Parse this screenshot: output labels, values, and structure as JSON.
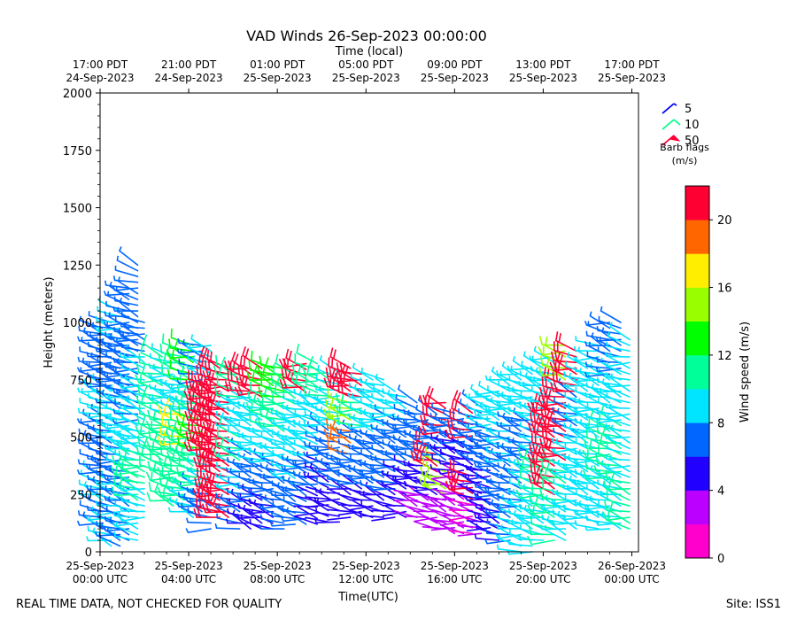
{
  "chart_data": {
    "type": "wind-barb",
    "title": "VAD Winds 26-Sep-2023 00:00:00",
    "top_axis_label": "Time (local)",
    "top_ticks": [
      {
        "t": 0,
        "line1": "17:00 PDT",
        "line2": "24-Sep-2023"
      },
      {
        "t": 4,
        "line1": "21:00 PDT",
        "line2": "24-Sep-2023"
      },
      {
        "t": 8,
        "line1": "01:00 PDT",
        "line2": "25-Sep-2023"
      },
      {
        "t": 12,
        "line1": "05:00 PDT",
        "line2": "25-Sep-2023"
      },
      {
        "t": 16,
        "line1": "09:00 PDT",
        "line2": "25-Sep-2023"
      },
      {
        "t": 20,
        "line1": "13:00 PDT",
        "line2": "25-Sep-2023"
      },
      {
        "t": 24,
        "line1": "17:00 PDT",
        "line2": "25-Sep-2023"
      }
    ],
    "bottom_ticks": [
      {
        "t": 0,
        "line1": "25-Sep-2023",
        "line2": "00:00 UTC"
      },
      {
        "t": 4,
        "line1": "25-Sep-2023",
        "line2": "04:00 UTC"
      },
      {
        "t": 8,
        "line1": "25-Sep-2023",
        "line2": "08:00 UTC"
      },
      {
        "t": 12,
        "line1": "25-Sep-2023",
        "line2": "12:00 UTC"
      },
      {
        "t": 16,
        "line1": "25-Sep-2023",
        "line2": "16:00 UTC"
      },
      {
        "t": 20,
        "line1": "25-Sep-2023",
        "line2": "20:00 UTC"
      },
      {
        "t": 24,
        "line1": "26-Sep-2023",
        "line2": "00:00 UTC"
      }
    ],
    "xlabel": "Time(UTC)",
    "ylabel": "Height (meters)",
    "xlim": [
      0,
      24.3
    ],
    "ylim": [
      0,
      2000
    ],
    "yticks": [
      0,
      250,
      500,
      750,
      1000,
      1250,
      1500,
      1750,
      2000
    ],
    "legend": {
      "items": [
        {
          "label": "5",
          "color": "#0000ff"
        },
        {
          "label": "10",
          "color": "#00ff88"
        },
        {
          "label": "50",
          "color": "#ff0033"
        }
      ],
      "caption_line1": "Barb flags",
      "caption_line2": "(m/s)",
      "placement": "right of plot"
    },
    "colorbar": {
      "label": "Wind speed (m/s)",
      "min": 0,
      "max": 22,
      "step": 2,
      "ticks": [
        0,
        4,
        8,
        12,
        16,
        20
      ],
      "colors": [
        "#ff00cc",
        "#bb00ff",
        "#2200ff",
        "#0066ff",
        "#00e5ff",
        "#00ff99",
        "#00ff00",
        "#99ff00",
        "#ffee00",
        "#ff6600",
        "#ff0033"
      ]
    },
    "columns": [
      {
        "t": 0.1,
        "h": [
          100,
          975
        ],
        "ws": [
          7,
          8,
          7,
          6,
          8,
          7,
          6
        ]
      },
      {
        "t": 0.5,
        "h": [
          25,
          1000
        ],
        "ws": [
          8,
          7,
          6,
          7,
          8,
          6,
          7
        ]
      },
      {
        "t": 0.9,
        "h": [
          25,
          1050
        ],
        "ws": [
          7,
          8,
          7,
          8,
          6,
          7,
          8
        ]
      },
      {
        "t": 1.3,
        "h": [
          50,
          1150
        ],
        "ws": [
          6,
          7,
          8,
          9,
          7,
          7,
          6
        ]
      },
      {
        "t": 1.7,
        "h": [
          50,
          1270
        ],
        "ws": [
          9,
          10,
          8,
          7,
          7,
          6,
          6
        ]
      },
      {
        "t": 2.0,
        "h": [
          150,
          1000
        ],
        "ws": [
          9,
          10,
          8,
          9,
          8,
          7
        ]
      },
      {
        "t": 2.8,
        "h": [
          350,
          850
        ],
        "ws": [
          10,
          11,
          10
        ]
      },
      {
        "t": 3.3,
        "h": [
          200,
          850
        ],
        "ws": [
          10,
          11,
          10,
          9,
          8
        ]
      },
      {
        "t": 3.8,
        "h": [
          200,
          880
        ],
        "ws": [
          11,
          10,
          17,
          9,
          11
        ]
      },
      {
        "t": 4.2,
        "h": [
          150,
          900
        ],
        "ws": [
          9,
          10,
          11,
          9,
          12
        ]
      },
      {
        "t": 4.6,
        "h": [
          150,
          900
        ],
        "ws": [
          7,
          10,
          12,
          11,
          6
        ]
      },
      {
        "t": 5.0,
        "h": [
          100,
          900
        ],
        "ws": [
          7,
          8,
          22,
          20,
          9
        ]
      },
      {
        "t": 5.4,
        "h": [
          150,
          820
        ],
        "ws": [
          21,
          22,
          22,
          21,
          22,
          20
        ]
      },
      {
        "t": 5.8,
        "h": [
          150,
          820
        ],
        "ws": [
          21,
          22,
          22,
          21,
          22,
          20
        ]
      },
      {
        "t": 6.3,
        "h": [
          100,
          800
        ],
        "ws": [
          7,
          8,
          10,
          9,
          10
        ]
      },
      {
        "t": 6.8,
        "h": [
          100,
          800
        ],
        "ws": [
          5,
          6,
          7,
          9,
          9,
          22
        ]
      },
      {
        "t": 7.3,
        "h": [
          100,
          800
        ],
        "ws": [
          5,
          6,
          8,
          9,
          22
        ]
      },
      {
        "t": 7.8,
        "h": [
          100,
          820
        ],
        "ws": [
          5,
          6,
          8,
          10,
          12
        ]
      },
      {
        "t": 8.3,
        "h": [
          100,
          800
        ],
        "ws": [
          6,
          7,
          9,
          11,
          12
        ]
      },
      {
        "t": 8.8,
        "h": [
          120,
          780
        ],
        "ws": [
          7,
          8,
          8,
          11
        ]
      },
      {
        "t": 9.3,
        "h": [
          120,
          820
        ],
        "ws": [
          6,
          7,
          9,
          8,
          22
        ]
      },
      {
        "t": 9.8,
        "h": [
          120,
          820
        ],
        "ws": [
          4,
          6,
          8,
          9,
          11
        ]
      },
      {
        "t": 10.3,
        "h": [
          130,
          800
        ],
        "ws": [
          4,
          5,
          7,
          8,
          10
        ]
      },
      {
        "t": 10.8,
        "h": [
          130,
          780
        ],
        "ws": [
          5,
          6,
          7,
          8,
          9
        ]
      },
      {
        "t": 11.3,
        "h": [
          150,
          800
        ],
        "ws": [
          4,
          6,
          18,
          15,
          22
        ]
      },
      {
        "t": 11.8,
        "h": [
          150,
          780
        ],
        "ws": [
          4,
          6,
          7,
          11,
          21
        ]
      },
      {
        "t": 12.3,
        "h": [
          150,
          760
        ],
        "ws": [
          4,
          6,
          7,
          9,
          8
        ]
      },
      {
        "t": 12.8,
        "h": [
          150,
          750
        ],
        "ws": [
          5,
          6,
          7,
          8,
          8
        ]
      },
      {
        "t": 13.3,
        "h": [
          150,
          700
        ],
        "ws": [
          4,
          6,
          7,
          7,
          8
        ]
      },
      {
        "t": 13.8,
        "h": [
          150,
          680
        ],
        "ws": [
          4,
          5,
          6,
          7,
          8
        ]
      },
      {
        "t": 14.3,
        "h": [
          150,
          650
        ],
        "ws": [
          3,
          5,
          6,
          7
        ]
      },
      {
        "t": 14.8,
        "h": [
          150,
          620
        ],
        "ws": [
          3,
          5,
          6,
          7
        ]
      },
      {
        "t": 15.2,
        "h": [
          100,
          600
        ],
        "ws": [
          2,
          4,
          21,
          7
        ]
      },
      {
        "t": 15.6,
        "h": [
          100,
          660
        ],
        "ws": [
          2,
          15,
          6,
          22
        ]
      },
      {
        "t": 16.0,
        "h": [
          80,
          620
        ],
        "ws": [
          2,
          3,
          5,
          6
        ]
      },
      {
        "t": 16.4,
        "h": [
          80,
          600
        ],
        "ws": [
          2,
          3,
          5,
          7
        ]
      },
      {
        "t": 16.8,
        "h": [
          80,
          620
        ],
        "ws": [
          1,
          21,
          4,
          22
        ]
      },
      {
        "t": 17.2,
        "h": [
          80,
          650
        ],
        "ws": [
          3,
          4,
          6,
          7
        ]
      },
      {
        "t": 17.6,
        "h": [
          80,
          680
        ],
        "ws": [
          4,
          5,
          6,
          8
        ]
      },
      {
        "t": 18.0,
        "h": [
          50,
          700
        ],
        "ws": [
          5,
          6,
          7,
          8
        ]
      },
      {
        "t": 18.5,
        "h": [
          50,
          750
        ],
        "ws": [
          6,
          7,
          8,
          9
        ]
      },
      {
        "t": 19.0,
        "h": [
          0,
          780
        ],
        "ws": [
          8,
          7,
          6,
          8
        ]
      },
      {
        "t": 19.5,
        "h": [
          0,
          800
        ],
        "ws": [
          9,
          8,
          7,
          9
        ]
      },
      {
        "t": 20.0,
        "h": [
          50,
          800
        ],
        "ws": [
          9,
          10,
          8,
          9
        ]
      },
      {
        "t": 20.5,
        "h": [
          50,
          850
        ],
        "ws": [
          10,
          22,
          21,
          8
        ]
      },
      {
        "t": 21.0,
        "h": [
          50,
          920
        ],
        "ws": [
          9,
          10,
          22,
          21,
          14
        ]
      },
      {
        "t": 21.5,
        "h": [
          100,
          880
        ],
        "ws": [
          9,
          8,
          7,
          21
        ]
      },
      {
        "t": 22.0,
        "h": [
          150,
          820
        ],
        "ws": [
          9,
          8,
          9,
          8
        ]
      },
      {
        "t": 22.5,
        "h": [
          100,
          900
        ],
        "ws": [
          9,
          8,
          8,
          9
        ]
      },
      {
        "t": 23.0,
        "h": [
          100,
          1000
        ],
        "ws": [
          9,
          10,
          8,
          7
        ]
      },
      {
        "t": 23.5,
        "h": [
          100,
          1010
        ],
        "ws": [
          9,
          10,
          8,
          7
        ]
      },
      {
        "t": 23.9,
        "h": [
          100,
          930
        ],
        "ws": [
          10,
          9,
          8,
          9
        ]
      }
    ]
  },
  "footer": {
    "disclaimer": "REAL TIME DATA, NOT CHECKED FOR QUALITY",
    "site": "Site: ISS1"
  }
}
